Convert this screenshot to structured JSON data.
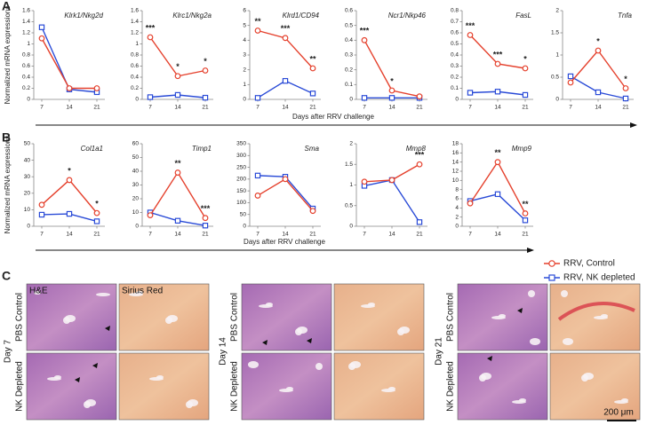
{
  "chart_data": [
    {
      "type": "line",
      "title": "Klrk1/Nkg2d",
      "categories": [
        "7",
        "14",
        "21"
      ],
      "series": [
        {
          "name": "RRV, Control",
          "color": "#e5412d",
          "marker": "circle",
          "values": [
            1.1,
            0.2,
            0.2
          ]
        },
        {
          "name": "RRV, NK depleted",
          "color": "#2a4bd7",
          "marker": "square",
          "values": [
            1.3,
            0.18,
            0.13
          ]
        }
      ],
      "ylim": [
        0,
        1.6
      ],
      "yticks": [
        0,
        0.2,
        0.4,
        0.6,
        0.8,
        1,
        1.2,
        1.4,
        1.6
      ],
      "annotations": [
        null,
        null,
        null
      ]
    },
    {
      "type": "line",
      "title": "Klrc1/Nkg2a",
      "categories": [
        "7",
        "14",
        "21"
      ],
      "series": [
        {
          "name": "RRV, Control",
          "color": "#e5412d",
          "marker": "circle",
          "values": [
            1.12,
            0.42,
            0.52
          ]
        },
        {
          "name": "RRV, NK depleted",
          "color": "#2a4bd7",
          "marker": "square",
          "values": [
            0.04,
            0.08,
            0.03
          ]
        }
      ],
      "ylim": [
        0,
        1.6
      ],
      "yticks": [
        0,
        0.2,
        0.4,
        0.6,
        0.8,
        1,
        1.2,
        1.4,
        1.6
      ],
      "annotations": [
        "***",
        "*",
        "*"
      ]
    },
    {
      "type": "line",
      "title": "Klrd1/CD94",
      "categories": [
        "7",
        "14",
        "21"
      ],
      "series": [
        {
          "name": "RRV, Control",
          "color": "#e5412d",
          "marker": "circle",
          "values": [
            4.65,
            4.15,
            2.1
          ]
        },
        {
          "name": "RRV, NK depleted",
          "color": "#2a4bd7",
          "marker": "square",
          "values": [
            0.1,
            1.25,
            0.4
          ]
        }
      ],
      "ylim": [
        0,
        6
      ],
      "yticks": [
        0,
        1,
        2,
        3,
        4,
        5,
        6
      ],
      "annotations": [
        "**",
        "***",
        "**"
      ]
    },
    {
      "type": "line",
      "title": "Ncr1/Nkp46",
      "categories": [
        "7",
        "14",
        "21"
      ],
      "series": [
        {
          "name": "RRV, Control",
          "color": "#e5412d",
          "marker": "circle",
          "values": [
            0.4,
            0.06,
            0.02
          ]
        },
        {
          "name": "RRV, NK depleted",
          "color": "#2a4bd7",
          "marker": "square",
          "values": [
            0.01,
            0.01,
            0.01
          ]
        }
      ],
      "ylim": [
        0,
        0.6
      ],
      "yticks": [
        0,
        0.1,
        0.2,
        0.3,
        0.4,
        0.5,
        0.6
      ],
      "annotations": [
        "***",
        "*",
        null
      ]
    },
    {
      "type": "line",
      "title": "FasL",
      "categories": [
        "7",
        "14",
        "21"
      ],
      "series": [
        {
          "name": "RRV, Control",
          "color": "#e5412d",
          "marker": "circle",
          "values": [
            0.58,
            0.32,
            0.28
          ]
        },
        {
          "name": "RRV, NK depleted",
          "color": "#2a4bd7",
          "marker": "square",
          "values": [
            0.06,
            0.07,
            0.04
          ]
        }
      ],
      "ylim": [
        0,
        0.8
      ],
      "yticks": [
        0,
        0.1,
        0.2,
        0.3,
        0.4,
        0.5,
        0.6,
        0.7,
        0.8
      ],
      "annotations": [
        "***",
        "***",
        "*"
      ]
    },
    {
      "type": "line",
      "title": "Tnfa",
      "categories": [
        "7",
        "14",
        "21"
      ],
      "series": [
        {
          "name": "RRV, Control",
          "color": "#e5412d",
          "marker": "circle",
          "values": [
            0.38,
            1.1,
            0.25
          ]
        },
        {
          "name": "RRV, NK depleted",
          "color": "#2a4bd7",
          "marker": "square",
          "values": [
            0.52,
            0.16,
            0.02
          ]
        }
      ],
      "ylim": [
        0,
        2
      ],
      "yticks": [
        0,
        0.5,
        1,
        1.5,
        2
      ],
      "annotations": [
        null,
        "*",
        "*"
      ]
    },
    {
      "type": "line",
      "title": "Col1a1",
      "categories": [
        "7",
        "14",
        "21"
      ],
      "series": [
        {
          "name": "RRV, Control",
          "color": "#e5412d",
          "marker": "circle",
          "values": [
            13,
            28,
            8
          ]
        },
        {
          "name": "RRV, NK depleted",
          "color": "#2a4bd7",
          "marker": "square",
          "values": [
            7,
            7.5,
            3
          ]
        }
      ],
      "ylim": [
        0,
        50
      ],
      "yticks": [
        0,
        10,
        20,
        30,
        40,
        50
      ],
      "annotations": [
        null,
        "*",
        "*"
      ]
    },
    {
      "type": "line",
      "title": "Timp1",
      "categories": [
        "7",
        "14",
        "21"
      ],
      "series": [
        {
          "name": "RRV, Control",
          "color": "#e5412d",
          "marker": "circle",
          "values": [
            8,
            39,
            6
          ]
        },
        {
          "name": "RRV, NK depleted",
          "color": "#2a4bd7",
          "marker": "square",
          "values": [
            10,
            4,
            0.5
          ]
        }
      ],
      "ylim": [
        0,
        60
      ],
      "yticks": [
        0,
        10,
        20,
        30,
        40,
        50,
        60
      ],
      "annotations": [
        null,
        "**",
        "***"
      ]
    },
    {
      "type": "line",
      "title": "Sma",
      "categories": [
        "7",
        "14",
        "21"
      ],
      "series": [
        {
          "name": "RRV, Control",
          "color": "#e5412d",
          "marker": "circle",
          "values": [
            130,
            200,
            65
          ]
        },
        {
          "name": "RRV, NK depleted",
          "color": "#2a4bd7",
          "marker": "square",
          "values": [
            215,
            210,
            75
          ]
        }
      ],
      "ylim": [
        0,
        350
      ],
      "yticks": [
        0,
        50,
        100,
        150,
        200,
        250,
        300,
        350
      ],
      "annotations": [
        null,
        null,
        null
      ]
    },
    {
      "type": "line",
      "title": "Mmp8",
      "categories": [
        "7",
        "14",
        "21"
      ],
      "series": [
        {
          "name": "RRV, Control",
          "color": "#e5412d",
          "marker": "circle",
          "values": [
            1.08,
            1.12,
            1.5
          ]
        },
        {
          "name": "RRV, NK depleted",
          "color": "#2a4bd7",
          "marker": "square",
          "values": [
            0.98,
            1.12,
            0.1
          ]
        }
      ],
      "ylim": [
        0,
        2
      ],
      "yticks": [
        0,
        0.5,
        1,
        1.5,
        2
      ],
      "annotations": [
        null,
        null,
        "***"
      ]
    },
    {
      "type": "line",
      "title": "Mmp9",
      "categories": [
        "7",
        "14",
        "21"
      ],
      "series": [
        {
          "name": "RRV, Control",
          "color": "#e5412d",
          "marker": "circle",
          "values": [
            5,
            14,
            2.8
          ]
        },
        {
          "name": "RRV, NK depleted",
          "color": "#2a4bd7",
          "marker": "square",
          "values": [
            5.5,
            7,
            1.3
          ]
        }
      ],
      "ylim": [
        0,
        18
      ],
      "yticks": [
        0,
        2,
        4,
        6,
        8,
        10,
        12,
        14,
        16,
        18
      ],
      "annotations": [
        null,
        "**",
        "**"
      ]
    }
  ],
  "panels": {
    "A": {
      "label": "A",
      "ylabel": "Normalized mRNA expressions",
      "xlabel": "Days after RRV challenge"
    },
    "B": {
      "label": "B",
      "ylabel": "Normalized mRNA expressions",
      "xlabel": "Days after RRV challenge"
    },
    "C": {
      "label": "C",
      "columns": [
        "H&E",
        "Sirius Red"
      ],
      "rows": [
        "PBS Control",
        "NK Depleted"
      ],
      "days": [
        "Day 7",
        "Day 14",
        "Day 21"
      ],
      "scale_bar": "200 μm"
    }
  }
}
